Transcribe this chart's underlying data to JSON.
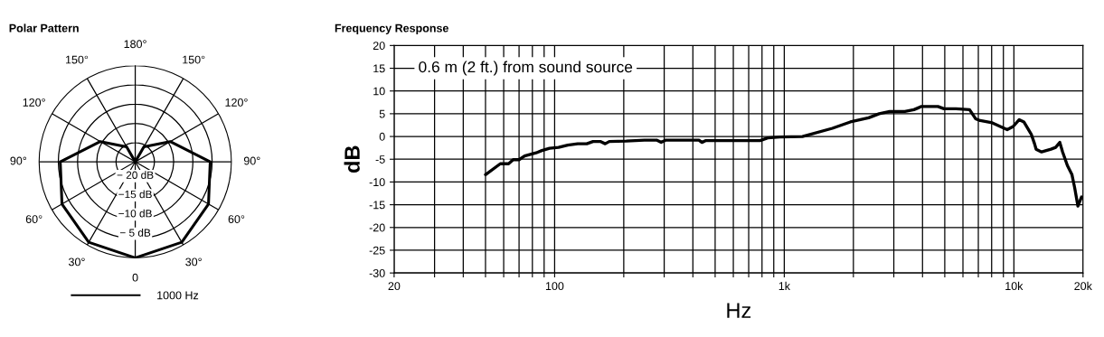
{
  "chart_data": [
    {
      "type": "radar",
      "title": "Polar Pattern",
      "categories": [
        "180°",
        "150°",
        "120°",
        "90°",
        "60°",
        "30°",
        "0",
        "30°",
        "60°",
        "90°",
        "120°",
        "150°"
      ],
      "series": [
        {
          "name": "1000 Hz",
          "color": "#000000",
          "values": [
            -25,
            -20.5,
            -14.5,
            -5.5,
            -3,
            -0.8,
            0,
            -0.8,
            -3,
            -5.5,
            -14.5,
            -20.5
          ]
        }
      ],
      "ylim": [
        -25,
        0
      ],
      "yticks": [
        {
          "value": -20,
          "label": "− 20 dB"
        },
        {
          "value": -15,
          "label": "−15 dB"
        },
        {
          "value": -10,
          "label": "−10 dB"
        },
        {
          "value": -5,
          "label": "− 5 dB"
        }
      ],
      "grid": true,
      "legend": "bottom"
    },
    {
      "type": "line",
      "title": "Frequency Response",
      "xlabel": "Hz",
      "ylabel": "dB",
      "log": "x",
      "series": [
        {
          "color": "#000000",
          "x": [
            50,
            58,
            63,
            66,
            70,
            74,
            83,
            88,
            95,
            104,
            114,
            126,
            138,
            147,
            158,
            166,
            173,
            205,
            246,
            278,
            291,
            305,
            425,
            438,
            456,
            785,
            847,
            956,
            1200,
            1620,
            1940,
            2330,
            2590,
            2880,
            3350,
            3670,
            3960,
            4670,
            4960,
            5600,
            6410,
            6810,
            7130,
            8050,
            9350,
            9930,
            10550,
            11050,
            11900,
            12300,
            12500,
            13200,
            14500,
            15200,
            15850,
            16300,
            17100,
            17900,
            18400,
            19000,
            19700
          ],
          "values": [
            -8.4,
            -6.0,
            -6.0,
            -5.1,
            -5.1,
            -4.3,
            -3.6,
            -3.1,
            -2.6,
            -2.4,
            -1.9,
            -1.6,
            -1.6,
            -1.1,
            -1.1,
            -1.6,
            -1.1,
            -1.0,
            -0.8,
            -0.8,
            -1.3,
            -0.8,
            -0.8,
            -1.3,
            -0.9,
            -0.9,
            -0.3,
            -0.1,
            0,
            1.8,
            3.2,
            4.1,
            5.0,
            5.5,
            5.5,
            5.9,
            6.6,
            6.6,
            6.1,
            6.1,
            5.9,
            3.9,
            3.5,
            3.0,
            1.5,
            2.2,
            3.7,
            3.2,
            0.5,
            -1.6,
            -2.8,
            -3.4,
            -2.8,
            -2.4,
            -1.3,
            -3.4,
            -6.4,
            -8.4,
            -11.3,
            -15.3,
            -13.3
          ]
        }
      ],
      "xlim": [
        20,
        20000
      ],
      "xticks": [
        20,
        {
          "value": 30,
          "label": null
        },
        {
          "value": 40,
          "label": null
        },
        {
          "value": 50,
          "label": null
        },
        {
          "value": 60,
          "label": null
        },
        {
          "value": 70,
          "label": null
        },
        {
          "value": 80,
          "label": null
        },
        {
          "value": 90,
          "label": null
        },
        100,
        {
          "value": 200,
          "label": null
        },
        {
          "value": 300,
          "label": null
        },
        {
          "value": 400,
          "label": null
        },
        {
          "value": 500,
          "label": null
        },
        {
          "value": 600,
          "label": null
        },
        {
          "value": 700,
          "label": null
        },
        {
          "value": 800,
          "label": null
        },
        {
          "value": 900,
          "label": null
        },
        {
          "value": 1000,
          "label": "1k"
        },
        {
          "value": 2000,
          "label": null
        },
        {
          "value": 3000,
          "label": null
        },
        {
          "value": 4000,
          "label": null
        },
        {
          "value": 5000,
          "label": null
        },
        {
          "value": 6000,
          "label": null
        },
        {
          "value": 7000,
          "label": null
        },
        {
          "value": 8000,
          "label": null
        },
        {
          "value": 9000,
          "label": null
        },
        {
          "value": 10000,
          "label": "10k"
        },
        {
          "value": 20000,
          "label": "20k"
        }
      ],
      "ylim": [
        -30,
        20
      ],
      "yticks": [
        -30,
        -25,
        -20,
        -15,
        -10,
        -5,
        0,
        5,
        10,
        15,
        20
      ],
      "grid": true,
      "annotations": [
        "0.6 m (2 ft.) from sound source"
      ]
    }
  ]
}
